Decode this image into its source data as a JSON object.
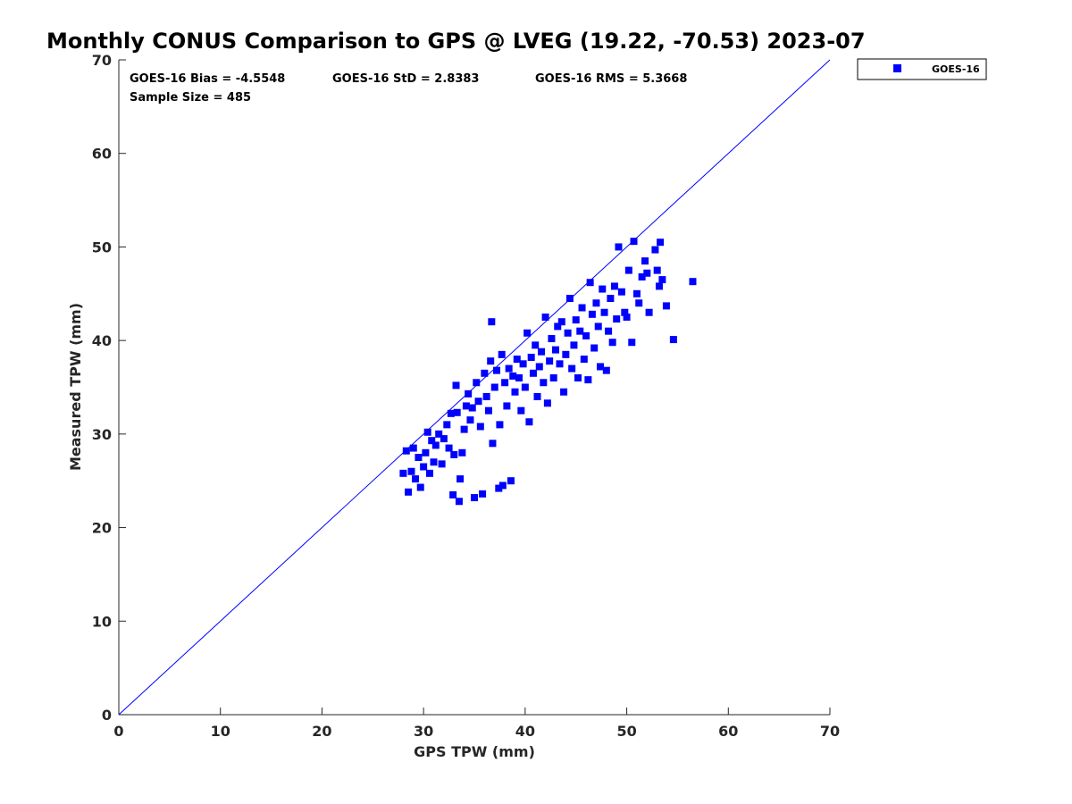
{
  "chart_data": {
    "type": "scatter",
    "title": "Monthly CONUS Comparison to GPS @ LVEG (19.22, -70.53) 2023-07",
    "xlabel": "GPS TPW (mm)",
    "ylabel": "Measured TPW (mm)",
    "xlim": [
      0,
      70
    ],
    "ylim": [
      0,
      70
    ],
    "xticks": [
      "0",
      "10",
      "20",
      "30",
      "40",
      "50",
      "60",
      "70"
    ],
    "yticks": [
      "0",
      "10",
      "20",
      "30",
      "40",
      "50",
      "60",
      "70"
    ],
    "grid": false,
    "legend_position": "top-right, outside plot",
    "reference_line": {
      "x": [
        0,
        70
      ],
      "y": [
        0,
        70
      ],
      "color": "#0000ff"
    },
    "stats": {
      "bias": "GOES-16 Bias = -4.5548",
      "std": "GOES-16 StD = 2.8383",
      "rms": "GOES-16 RMS = 5.3668",
      "sample": "Sample Size = 485"
    },
    "series": [
      {
        "name": "GOES-16",
        "color": "#0000ff",
        "marker": "square",
        "points": [
          [
            28.0,
            25.8
          ],
          [
            28.3,
            28.2
          ],
          [
            28.5,
            23.8
          ],
          [
            28.8,
            26.0
          ],
          [
            29.0,
            28.5
          ],
          [
            29.2,
            25.2
          ],
          [
            29.5,
            27.5
          ],
          [
            29.7,
            24.3
          ],
          [
            30.0,
            26.5
          ],
          [
            30.2,
            28.0
          ],
          [
            30.4,
            30.2
          ],
          [
            30.6,
            25.8
          ],
          [
            30.8,
            29.3
          ],
          [
            31.0,
            27.0
          ],
          [
            31.2,
            28.8
          ],
          [
            31.5,
            30.0
          ],
          [
            31.8,
            26.8
          ],
          [
            32.0,
            29.5
          ],
          [
            32.3,
            31.0
          ],
          [
            32.5,
            28.5
          ],
          [
            32.7,
            32.2
          ],
          [
            32.9,
            23.5
          ],
          [
            33.0,
            27.8
          ],
          [
            33.2,
            35.2
          ],
          [
            33.3,
            32.3
          ],
          [
            33.5,
            22.8
          ],
          [
            33.6,
            25.2
          ],
          [
            33.8,
            28.0
          ],
          [
            34.0,
            30.5
          ],
          [
            34.2,
            33.0
          ],
          [
            34.4,
            34.3
          ],
          [
            34.6,
            31.5
          ],
          [
            34.8,
            32.8
          ],
          [
            35.0,
            23.2
          ],
          [
            35.2,
            35.5
          ],
          [
            35.4,
            33.5
          ],
          [
            35.6,
            30.8
          ],
          [
            35.8,
            23.6
          ],
          [
            36.0,
            36.5
          ],
          [
            36.2,
            34.0
          ],
          [
            36.4,
            32.5
          ],
          [
            36.6,
            37.8
          ],
          [
            36.7,
            42.0
          ],
          [
            36.8,
            29.0
          ],
          [
            37.0,
            35.0
          ],
          [
            37.2,
            36.8
          ],
          [
            37.4,
            24.2
          ],
          [
            37.5,
            31.0
          ],
          [
            37.7,
            38.5
          ],
          [
            37.8,
            24.5
          ],
          [
            38.0,
            35.5
          ],
          [
            38.2,
            33.0
          ],
          [
            38.4,
            37.0
          ],
          [
            38.6,
            25.0
          ],
          [
            38.8,
            36.2
          ],
          [
            39.0,
            34.5
          ],
          [
            39.2,
            38.0
          ],
          [
            39.4,
            36.0
          ],
          [
            39.6,
            32.5
          ],
          [
            39.8,
            37.5
          ],
          [
            40.0,
            35.0
          ],
          [
            40.2,
            40.8
          ],
          [
            40.4,
            31.3
          ],
          [
            40.6,
            38.2
          ],
          [
            40.8,
            36.5
          ],
          [
            41.0,
            39.5
          ],
          [
            41.2,
            34.0
          ],
          [
            41.4,
            37.2
          ],
          [
            41.6,
            38.8
          ],
          [
            41.8,
            35.5
          ],
          [
            42.0,
            42.5
          ],
          [
            42.2,
            33.3
          ],
          [
            42.4,
            37.8
          ],
          [
            42.6,
            40.2
          ],
          [
            42.8,
            36.0
          ],
          [
            43.0,
            39.0
          ],
          [
            43.2,
            41.5
          ],
          [
            43.4,
            37.5
          ],
          [
            43.6,
            42.0
          ],
          [
            43.8,
            34.5
          ],
          [
            44.0,
            38.5
          ],
          [
            44.2,
            40.8
          ],
          [
            44.4,
            44.5
          ],
          [
            44.6,
            37.0
          ],
          [
            44.8,
            39.5
          ],
          [
            45.0,
            42.2
          ],
          [
            45.2,
            36.0
          ],
          [
            45.4,
            41.0
          ],
          [
            45.6,
            43.5
          ],
          [
            45.8,
            38.0
          ],
          [
            46.0,
            40.5
          ],
          [
            46.2,
            35.8
          ],
          [
            46.4,
            46.2
          ],
          [
            46.6,
            42.8
          ],
          [
            46.8,
            39.2
          ],
          [
            47.0,
            44.0
          ],
          [
            47.2,
            41.5
          ],
          [
            47.4,
            37.2
          ],
          [
            47.6,
            45.5
          ],
          [
            47.8,
            43.0
          ],
          [
            48.0,
            36.8
          ],
          [
            48.2,
            41.0
          ],
          [
            48.4,
            44.5
          ],
          [
            48.6,
            39.8
          ],
          [
            48.8,
            45.8
          ],
          [
            49.0,
            42.3
          ],
          [
            49.2,
            50.0
          ],
          [
            49.5,
            45.2
          ],
          [
            49.8,
            43.0
          ],
          [
            50.0,
            42.5
          ],
          [
            50.2,
            47.5
          ],
          [
            50.5,
            39.8
          ],
          [
            50.7,
            50.6
          ],
          [
            51.0,
            45.0
          ],
          [
            51.2,
            44.0
          ],
          [
            51.5,
            46.8
          ],
          [
            51.8,
            48.5
          ],
          [
            52.0,
            47.2
          ],
          [
            52.2,
            43.0
          ],
          [
            52.8,
            49.7
          ],
          [
            53.0,
            47.5
          ],
          [
            53.2,
            45.8
          ],
          [
            53.3,
            50.5
          ],
          [
            53.5,
            46.5
          ],
          [
            53.9,
            43.7
          ],
          [
            54.6,
            40.1
          ],
          [
            56.5,
            46.3
          ]
        ]
      }
    ]
  }
}
